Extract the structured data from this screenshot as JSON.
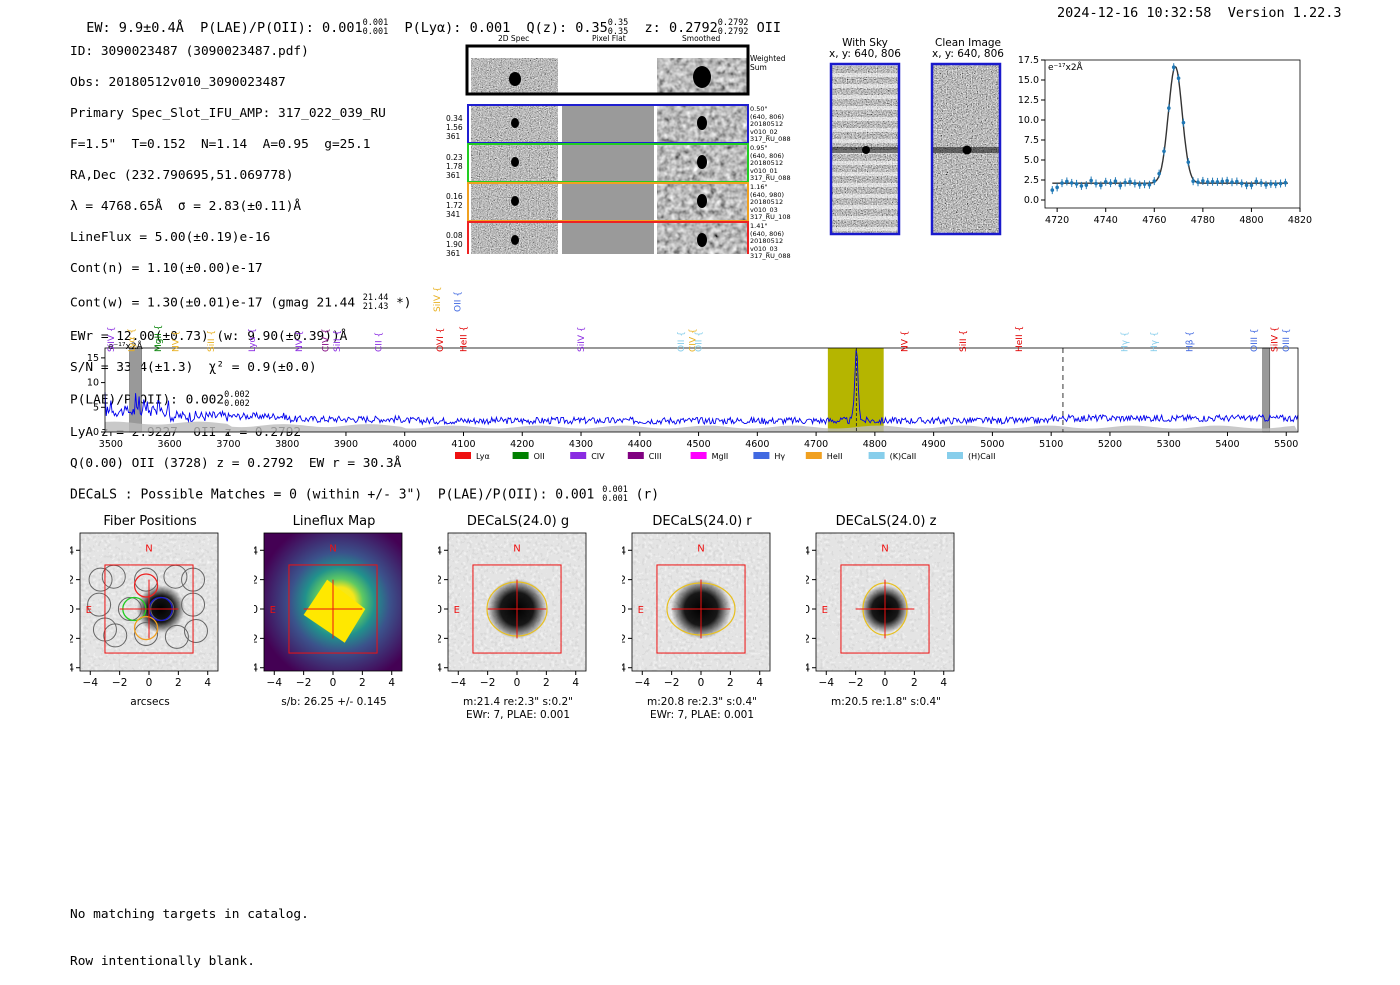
{
  "header": {
    "ew_label": "EW:",
    "ew_value": "9.9±0.4Å",
    "plae_label": "P(LAE)/P(OII):",
    "plae_value": "0.001",
    "plae_hi": "0.001",
    "plae_lo": "0.001",
    "plya_label": "P(Lyα):",
    "plya_value": "0.001",
    "qz_label": "Q(z):",
    "qz_value": "0.35",
    "qz_hi": "0.35",
    "qz_lo": "0.35",
    "z_label": "z:",
    "z_value": "0.2792",
    "z_hi": "0.2792",
    "z_lo": "0.2792",
    "z_line": "OII",
    "datetime": "2024-12-16 10:32:58",
    "version": "Version 1.22.3"
  },
  "info": {
    "id": "ID: 3090023487 (3090023487.pdf)",
    "obs": "Obs: 20180512v010_3090023487",
    "primary": "Primary Spec_Slot_IFU_AMP: 317_022_039_RU",
    "fparams": "F=1.5\"  T=0.152  N=1.14  A=0.95  g=25.1",
    "radec": "RA,Dec (232.790695,51.069778)",
    "lambda": "λ = 4768.65Å  σ = 2.83(±0.11)Å",
    "lineflux": "LineFlux = 5.00(±0.19)e-16",
    "contn": "Cont(n) = 1.10(±0.00)e-17",
    "contw": "Cont(w) = 1.30(±0.01)e-17 (gmag 21.44",
    "contw_hi": "21.44",
    "contw_lo": "21.43",
    "contw_end": "*)",
    "ewr": "EWr = 12.00(±0.73) (w: 9.90(±0.39))Å",
    "sn": "S/N = 33.4(±1.3)  χ² = 0.9(±0.0)",
    "plae": "P(LAE)/P(OII): 0.002",
    "plae_hi": "0.002",
    "plae_lo": "0.002",
    "lya": "LyA z = 2.9227  OII z = 0.2792",
    "q": "Q(0.00) OII (3728) z = 0.2792  EW r = 30.3Å"
  },
  "cutouts": {
    "col_2d": "2D Spec",
    "col_flat": "Pixel Flat",
    "col_smooth": "Smoothed",
    "weighted": "Weighted Sum",
    "rows": [
      {
        "left": "0.34\n1.56\n361",
        "right": "0.50\"\n(640, 806)\n20180512\nv010_02\n317_RU_088",
        "color": "#1f1fd0"
      },
      {
        "left": "0.23\n1.78\n361",
        "right": "0.95\"\n(640, 806)\n20180512\nv010_01\n317_RU_088",
        "color": "#22cc22"
      },
      {
        "left": "0.16\n1.72\n341",
        "right": "1.16\"\n(640, 980)\n20180512\nv010_03\n317_RU_108",
        "color": "#f0a020"
      },
      {
        "left": "0.08\n1.90\n361",
        "right": "1.41\"\n(640, 806)\n20180512\nv010_03\n317_RU_088",
        "color": "#ee2222"
      }
    ]
  },
  "sky": {
    "with_title": "With Sky",
    "with_coords": "x, y: 640, 806",
    "clean_title": "Clean Image",
    "clean_coords": "x, y: 640, 806"
  },
  "zoom_chart": {
    "chart_data": {
      "type": "line",
      "ylabel": "e⁻¹⁷x2Å",
      "xlim": [
        4715,
        4820
      ],
      "ylim": [
        -1,
        17.5
      ],
      "xticks": [
        "4720",
        "4740",
        "4760",
        "4780",
        "4800",
        "4820"
      ],
      "yticks": [
        "0.0",
        "2.5",
        "5.0",
        "7.5",
        "10.0",
        "12.5",
        "15.0",
        "17.5"
      ],
      "center": 4768.65,
      "sigma": 2.83,
      "peak": 14.6,
      "cont": 2.1
    }
  },
  "spectrum": {
    "chart_data": {
      "type": "line",
      "ylabel": "e⁻¹⁷x2Å",
      "xlim": [
        3490,
        5520
      ],
      "ylim": [
        0,
        17
      ],
      "xticks": [
        "3500",
        "3600",
        "3700",
        "3800",
        "3900",
        "4000",
        "4100",
        "4200",
        "4300",
        "4400",
        "4500",
        "4600",
        "4700",
        "4800",
        "4900",
        "5000",
        "5100",
        "5200",
        "5300",
        "5400",
        "5500"
      ],
      "yticks": [
        "0",
        "5",
        "10",
        "15"
      ],
      "highlight": [
        4720,
        4815
      ],
      "line_center": 4768.65,
      "dashed": 5120,
      "masked": [
        [
          3532,
          3552
        ],
        [
          5460,
          5472
        ]
      ]
    },
    "lines": [
      {
        "name": "SiIV",
        "w": 3500,
        "color": "#8a2be2",
        "row": 1
      },
      {
        "name": "Lyα",
        "w": 3535,
        "color": "#e8b020",
        "row": 1
      },
      {
        "name": "MgII",
        "w": 3580,
        "color": "#008000",
        "row": 1
      },
      {
        "name": "NV",
        "w": 3610,
        "color": "#e8b020",
        "row": 1
      },
      {
        "name": "SiII",
        "w": 3670,
        "color": "#e8b020",
        "row": 1
      },
      {
        "name": "Lyα",
        "w": 3740,
        "color": "#8a2be2",
        "row": 1
      },
      {
        "name": "NV",
        "w": 3820,
        "color": "#8a2be2",
        "row": 1
      },
      {
        "name": "CIV",
        "w": 3865,
        "color": "#800080",
        "row": 1
      },
      {
        "name": "SiII",
        "w": 3885,
        "color": "#8a2be2",
        "row": 1
      },
      {
        "name": "CII",
        "w": 3955,
        "color": "#8a2be2",
        "row": 1
      },
      {
        "name": "OVI",
        "w": 4060,
        "color": "#e00000",
        "row": 1
      },
      {
        "name": "HeII",
        "w": 4100,
        "color": "#e00000",
        "row": 1
      },
      {
        "name": "SiIV",
        "w": 4300,
        "color": "#8a2be2",
        "row": 1
      },
      {
        "name": "OII",
        "w": 4470,
        "color": "#87ceeb",
        "row": 1
      },
      {
        "name": "CIV",
        "w": 4490,
        "color": "#e8b020",
        "row": 1
      },
      {
        "name": "OII",
        "w": 4500,
        "color": "#87ceeb",
        "row": 1
      },
      {
        "name": "NV",
        "w": 4850,
        "color": "#e00000",
        "row": 1
      },
      {
        "name": "SiII",
        "w": 4950,
        "color": "#e00000",
        "row": 1
      },
      {
        "name": "HeII",
        "w": 5045,
        "color": "#e00000",
        "row": 1
      },
      {
        "name": "Hγ",
        "w": 5225,
        "color": "#87ceeb",
        "row": 1
      },
      {
        "name": "Hγ",
        "w": 5275,
        "color": "#87ceeb",
        "row": 1
      },
      {
        "name": "Hβ",
        "w": 5335,
        "color": "#4169e1",
        "row": 1
      },
      {
        "name": "OIII",
        "w": 5445,
        "color": "#4169e1",
        "row": 1
      },
      {
        "name": "SiIV",
        "w": 5480,
        "color": "#e00000",
        "row": 1
      },
      {
        "name": "OIII",
        "w": 5500,
        "color": "#4169e1",
        "row": 1
      },
      {
        "name": "SiIV",
        "w": 4055,
        "color": "#e8b020",
        "row": 0
      },
      {
        "name": "OII",
        "w": 4090,
        "color": "#4169e1",
        "row": 0
      }
    ],
    "legend": [
      {
        "name": "Lyα",
        "color": "#ee1111"
      },
      {
        "name": "OII",
        "color": "#008000"
      },
      {
        "name": "CIV",
        "color": "#8a2be2"
      },
      {
        "name": "CIII",
        "color": "#800080"
      },
      {
        "name": "MgII",
        "color": "#ff00ff"
      },
      {
        "name": "Hγ",
        "color": "#4169e1"
      },
      {
        "name": "HeII",
        "color": "#f0a020"
      },
      {
        "name": "(K)CaII",
        "color": "#87ceeb"
      },
      {
        "name": "(H)CaII",
        "color": "#87ceeb"
      }
    ]
  },
  "decals": {
    "title": "DECaLS : Possible Matches = 0 (within +/- 3\")  P(LAE)/P(OII): 0.001",
    "hi": "0.001",
    "lo": "0.001",
    "band": "(r)"
  },
  "panels": [
    {
      "title": "Fiber Positions",
      "caption": "arcsecs",
      "caption2": ""
    },
    {
      "title": "Lineflux Map",
      "caption": "s/b: 26.25 +/- 0.145",
      "caption2": ""
    },
    {
      "title": "DECaLS(24.0) g",
      "caption": "m:21.4  re:2.3\"  s:0.2\"",
      "caption2": "EWr: 7, PLAE: 0.001"
    },
    {
      "title": "DECaLS(24.0) r",
      "caption": "m:20.8  re:2.3\"  s:0.4\"",
      "caption2": "EWr: 7, PLAE: 0.001"
    },
    {
      "title": "DECaLS(24.0) z",
      "caption": "m:20.5  re:1.8\"  s:0.4\"",
      "caption2": ""
    }
  ],
  "panel_axes": {
    "ticks": [
      "−4",
      "−2",
      "0",
      "2",
      "4"
    ],
    "north": "N",
    "east": "E"
  },
  "footer": {
    "line1": "No matching targets in catalog.",
    "line2": "Row intentionally blank."
  }
}
